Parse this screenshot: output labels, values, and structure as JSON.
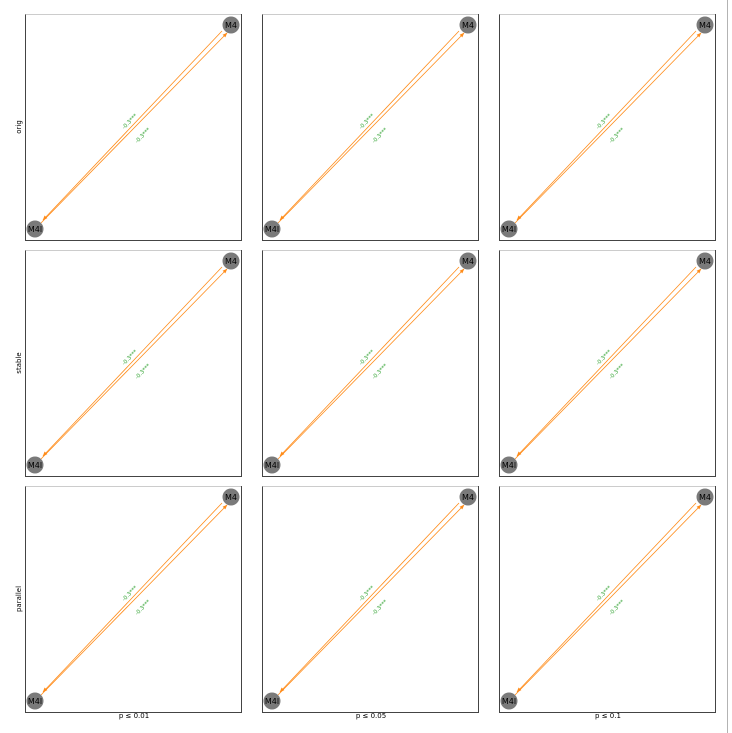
{
  "rows": [
    {
      "label": "orig"
    },
    {
      "label": "stable"
    },
    {
      "label": "parallel"
    }
  ],
  "columns": [
    {
      "label": "p ≤ 0.01"
    },
    {
      "label": "p ≤ 0.05"
    },
    {
      "label": "p ≤ 0.1"
    }
  ],
  "nodes": {
    "top": "M4",
    "bottom": "M4l"
  },
  "edges": [
    {
      "from": "M4",
      "to": "M4l",
      "label": "-0.3***"
    },
    {
      "from": "M4l",
      "to": "M4",
      "label": "-0.3***"
    }
  ],
  "colors": {
    "edge": "#ff8c1a",
    "edge_label": "#2ca02c",
    "node_fill": "#7a7a7a",
    "panel_border": "#444444"
  }
}
